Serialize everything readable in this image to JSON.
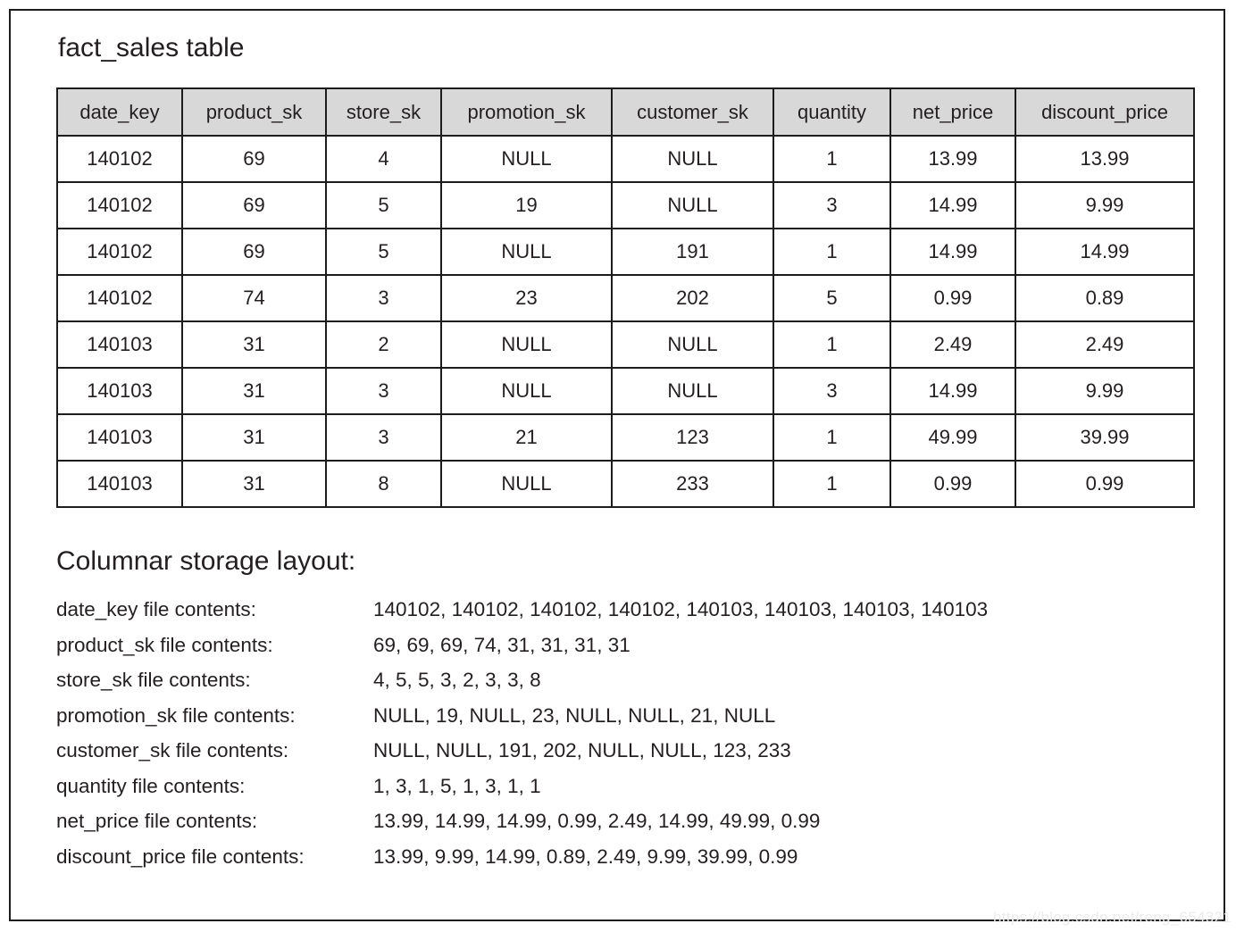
{
  "title": "fact_sales table",
  "table": {
    "headers": [
      "date_key",
      "product_sk",
      "store_sk",
      "promotion_sk",
      "customer_sk",
      "quantity",
      "net_price",
      "discount_price"
    ],
    "rows": [
      [
        "140102",
        "69",
        "4",
        "NULL",
        "NULL",
        "1",
        "13.99",
        "13.99"
      ],
      [
        "140102",
        "69",
        "5",
        "19",
        "NULL",
        "3",
        "14.99",
        "9.99"
      ],
      [
        "140102",
        "69",
        "5",
        "NULL",
        "191",
        "1",
        "14.99",
        "14.99"
      ],
      [
        "140102",
        "74",
        "3",
        "23",
        "202",
        "5",
        "0.99",
        "0.89"
      ],
      [
        "140103",
        "31",
        "2",
        "NULL",
        "NULL",
        "1",
        "2.49",
        "2.49"
      ],
      [
        "140103",
        "31",
        "3",
        "NULL",
        "NULL",
        "3",
        "14.99",
        "9.99"
      ],
      [
        "140103",
        "31",
        "3",
        "21",
        "123",
        "1",
        "49.99",
        "39.99"
      ],
      [
        "140103",
        "31",
        "8",
        "NULL",
        "233",
        "1",
        "0.99",
        "0.99"
      ]
    ]
  },
  "columnar": {
    "heading": "Columnar storage layout:",
    "entries": [
      {
        "label": "date_key file contents:",
        "values": "140102, 140102, 140102, 140102, 140103, 140103, 140103, 140103"
      },
      {
        "label": "product_sk file contents:",
        "values": "69, 69, 69, 74, 31, 31, 31, 31"
      },
      {
        "label": "store_sk file contents:",
        "values": "4, 5, 5, 3, 2, 3, 3, 8"
      },
      {
        "label": "promotion_sk file contents:",
        "values": "NULL, 19, NULL, 23, NULL, NULL, 21, NULL"
      },
      {
        "label": "customer_sk file contents:",
        "values": "NULL, NULL, 191, 202, NULL, NULL, 123, 233"
      },
      {
        "label": "quantity file contents:",
        "values": "1, 3, 1, 5, 1, 3, 1, 1"
      },
      {
        "label": "net_price file contents:",
        "values": "13.99, 14.99, 14.99, 0.99, 2.49, 14.99, 49.99, 0.99"
      },
      {
        "label": "discount_price file contents:",
        "values": "13.99, 9.99, 14.99, 0.89, 2.49, 9.99, 39.99, 0.99"
      }
    ]
  },
  "watermark": "https://blog.csdn.net/reng_654321",
  "colors": {
    "header_bg": "#d8d8d8",
    "border": "#1c1c1c",
    "text": "#231f20",
    "watermark": "#ececec"
  }
}
